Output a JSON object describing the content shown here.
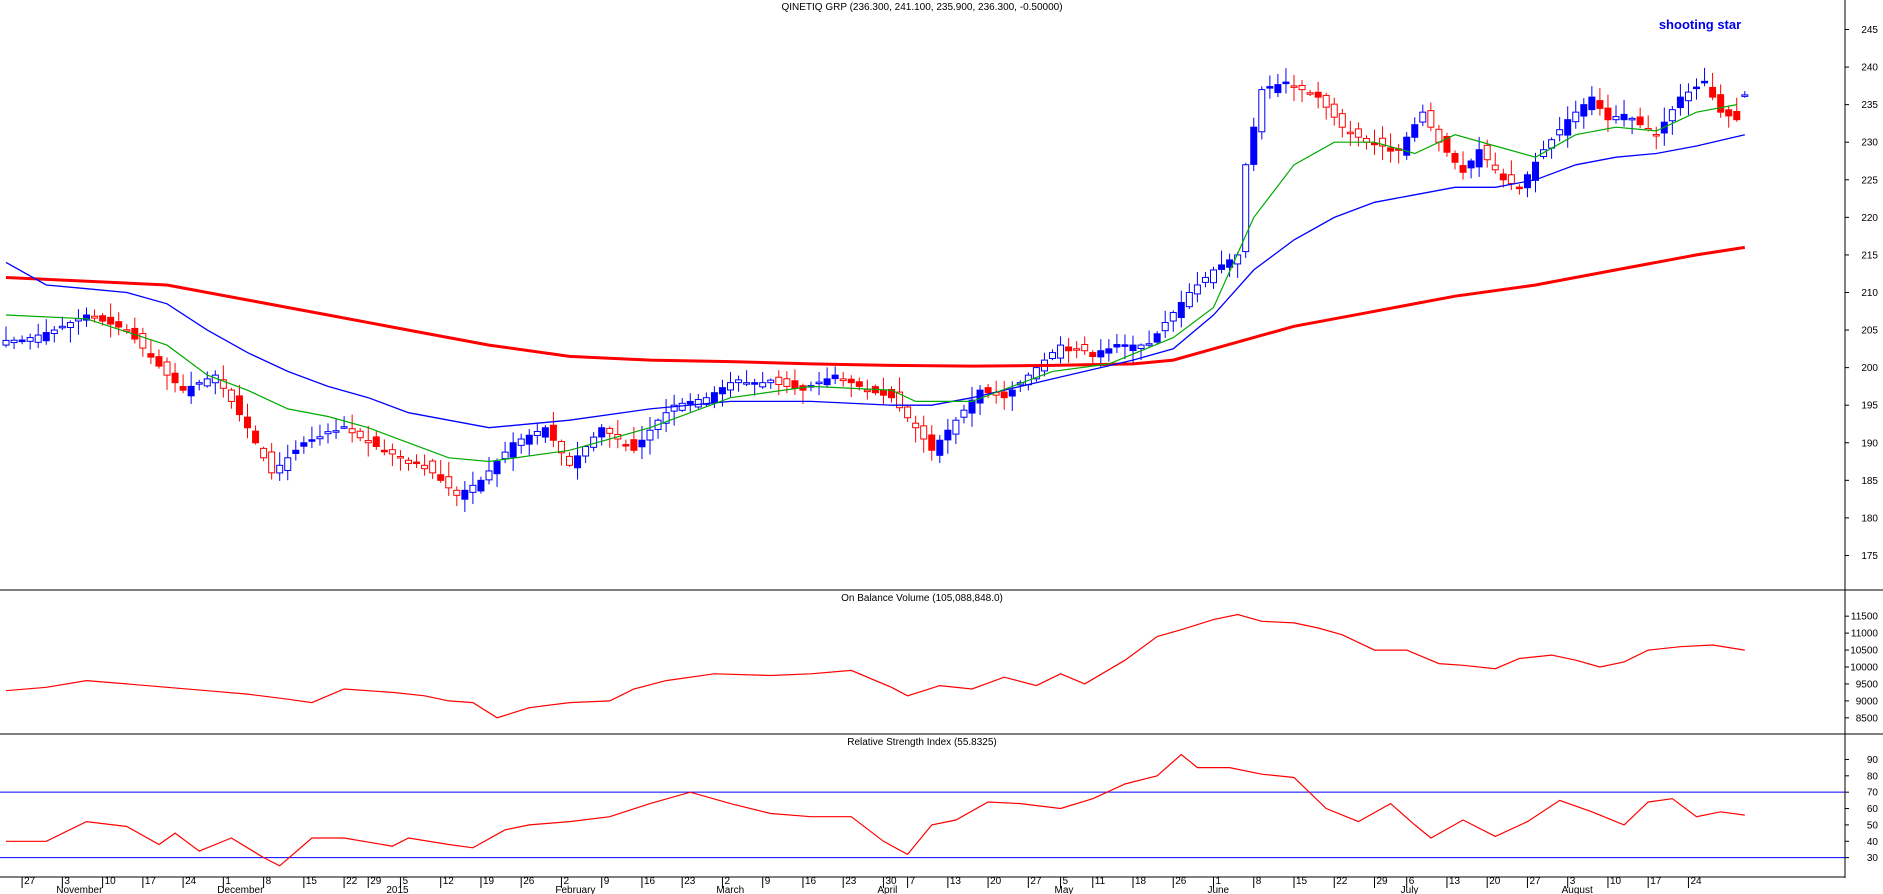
{
  "chart_data": {
    "type": "candlestick",
    "main": {
      "title": "QINETIQ GRP (236.300, 241.100, 235.900, 236.300, -0.50000)",
      "annotation": "shooting star",
      "ylim": [
        172,
        246
      ],
      "yticks": [
        "175",
        "180",
        "185",
        "190",
        "195",
        "200",
        "205",
        "210",
        "215",
        "220",
        "225",
        "230",
        "235",
        "240",
        "245"
      ],
      "grid": false,
      "colors": {
        "up": "#0000ff",
        "down": "#ff0000",
        "ma_short": "#00aa00",
        "ma_mid": "#0000ff",
        "ma_long": "#ff0000"
      },
      "close_path": [
        [
          0,
          203
        ],
        [
          6,
          205
        ],
        [
          10,
          207
        ],
        [
          15,
          205
        ],
        [
          20,
          199
        ],
        [
          22,
          197
        ],
        [
          26,
          199
        ],
        [
          30,
          192
        ],
        [
          33,
          186
        ],
        [
          37,
          190
        ],
        [
          42,
          192
        ],
        [
          45,
          190
        ],
        [
          49,
          188
        ],
        [
          52,
          187
        ],
        [
          56,
          183
        ],
        [
          59,
          185
        ],
        [
          63,
          190
        ],
        [
          67,
          192
        ],
        [
          70,
          187
        ],
        [
          74,
          192
        ],
        [
          78,
          189
        ],
        [
          81,
          193
        ],
        [
          83,
          195
        ],
        [
          87,
          196
        ],
        [
          90,
          198
        ],
        [
          95,
          198
        ],
        [
          99,
          197
        ],
        [
          103,
          199
        ],
        [
          107,
          197
        ],
        [
          110,
          196
        ],
        [
          113,
          192
        ],
        [
          115,
          189
        ],
        [
          118,
          193
        ],
        [
          121,
          197
        ],
        [
          124,
          196
        ],
        [
          127,
          199
        ],
        [
          131,
          203
        ],
        [
          135,
          202
        ],
        [
          139,
          203
        ],
        [
          142,
          203
        ],
        [
          144,
          206
        ],
        [
          147,
          210
        ],
        [
          150,
          213
        ],
        [
          153,
          215
        ],
        [
          154,
          227
        ],
        [
          156,
          237
        ],
        [
          159,
          238
        ],
        [
          163,
          236
        ],
        [
          166,
          232
        ],
        [
          169,
          230
        ],
        [
          173,
          229
        ],
        [
          176,
          234
        ],
        [
          178,
          230
        ],
        [
          181,
          226
        ],
        [
          183,
          229
        ],
        [
          186,
          225
        ],
        [
          188,
          224
        ],
        [
          191,
          229
        ],
        [
          194,
          233
        ],
        [
          197,
          236
        ],
        [
          199,
          233
        ],
        [
          202,
          233
        ],
        [
          205,
          231
        ],
        [
          208,
          236
        ],
        [
          211,
          238
        ],
        [
          213,
          234
        ],
        [
          215,
          233
        ],
        [
          216,
          236.3
        ]
      ],
      "ma_short": [
        [
          0,
          207
        ],
        [
          10,
          206.5
        ],
        [
          20,
          203
        ],
        [
          25,
          199
        ],
        [
          30,
          197
        ],
        [
          35,
          194.5
        ],
        [
          40,
          193.5
        ],
        [
          45,
          192
        ],
        [
          50,
          190
        ],
        [
          55,
          188
        ],
        [
          60,
          187.5
        ],
        [
          70,
          189
        ],
        [
          80,
          192
        ],
        [
          90,
          196
        ],
        [
          100,
          197.5
        ],
        [
          110,
          197
        ],
        [
          113,
          195.5
        ],
        [
          120,
          195.5
        ],
        [
          130,
          199.5
        ],
        [
          137,
          200.5
        ],
        [
          145,
          204
        ],
        [
          150,
          208
        ],
        [
          155,
          220
        ],
        [
          160,
          227
        ],
        [
          165,
          230
        ],
        [
          170,
          230
        ],
        [
          175,
          228.5
        ],
        [
          180,
          231
        ],
        [
          185,
          229.5
        ],
        [
          190,
          228
        ],
        [
          195,
          231
        ],
        [
          200,
          232
        ],
        [
          205,
          231.5
        ],
        [
          210,
          234
        ],
        [
          215,
          235
        ]
      ],
      "ma_mid": [
        [
          0,
          214
        ],
        [
          5,
          211
        ],
        [
          10,
          210.5
        ],
        [
          15,
          210
        ],
        [
          20,
          208.5
        ],
        [
          25,
          205
        ],
        [
          30,
          202
        ],
        [
          35,
          199.5
        ],
        [
          40,
          197.5
        ],
        [
          45,
          196
        ],
        [
          50,
          194
        ],
        [
          60,
          192
        ],
        [
          70,
          193
        ],
        [
          80,
          194.5
        ],
        [
          90,
          195.5
        ],
        [
          100,
          195.5
        ],
        [
          110,
          195
        ],
        [
          115,
          195
        ],
        [
          120,
          196
        ],
        [
          130,
          198.5
        ],
        [
          140,
          201
        ],
        [
          145,
          202.5
        ],
        [
          150,
          207
        ],
        [
          155,
          213
        ],
        [
          160,
          217
        ],
        [
          165,
          220
        ],
        [
          170,
          222
        ],
        [
          175,
          223
        ],
        [
          180,
          224
        ],
        [
          185,
          224
        ],
        [
          190,
          225
        ],
        [
          195,
          227
        ],
        [
          200,
          228
        ],
        [
          205,
          228.5
        ],
        [
          210,
          229.5
        ],
        [
          216,
          231
        ]
      ],
      "ma_long": [
        [
          0,
          212
        ],
        [
          20,
          211
        ],
        [
          30,
          209
        ],
        [
          40,
          207
        ],
        [
          50,
          205
        ],
        [
          60,
          203
        ],
        [
          70,
          201.5
        ],
        [
          80,
          201
        ],
        [
          90,
          200.8
        ],
        [
          100,
          200.5
        ],
        [
          110,
          200.3
        ],
        [
          120,
          200.2
        ],
        [
          130,
          200.3
        ],
        [
          140,
          200.5
        ],
        [
          145,
          201
        ],
        [
          150,
          202.5
        ],
        [
          160,
          205.5
        ],
        [
          170,
          207.5
        ],
        [
          180,
          209.5
        ],
        [
          190,
          211
        ],
        [
          200,
          213
        ],
        [
          210,
          215
        ],
        [
          216,
          216
        ]
      ]
    },
    "obv": {
      "title": "On Balance Volume (105,088,848.0)",
      "ylim": [
        8200,
        11800
      ],
      "yticks": [
        "8500",
        "9000",
        "9500",
        "10000",
        "10500",
        "11000",
        "11500"
      ],
      "path": [
        [
          0,
          9300
        ],
        [
          5,
          9400
        ],
        [
          10,
          9600
        ],
        [
          15,
          9500
        ],
        [
          20,
          9400
        ],
        [
          25,
          9300
        ],
        [
          30,
          9200
        ],
        [
          35,
          9050
        ],
        [
          38,
          8950
        ],
        [
          42,
          9350
        ],
        [
          48,
          9250
        ],
        [
          52,
          9150
        ],
        [
          55,
          9000
        ],
        [
          58,
          8950
        ],
        [
          61,
          8500
        ],
        [
          65,
          8800
        ],
        [
          70,
          8950
        ],
        [
          75,
          9000
        ],
        [
          78,
          9350
        ],
        [
          82,
          9600
        ],
        [
          88,
          9800
        ],
        [
          95,
          9750
        ],
        [
          100,
          9800
        ],
        [
          105,
          9900
        ],
        [
          110,
          9400
        ],
        [
          112,
          9150
        ],
        [
          116,
          9450
        ],
        [
          120,
          9350
        ],
        [
          124,
          9700
        ],
        [
          128,
          9450
        ],
        [
          131,
          9800
        ],
        [
          134,
          9500
        ],
        [
          139,
          10200
        ],
        [
          143,
          10900
        ],
        [
          146,
          11100
        ],
        [
          150,
          11400
        ],
        [
          153,
          11550
        ],
        [
          156,
          11350
        ],
        [
          160,
          11300
        ],
        [
          163,
          11150
        ],
        [
          166,
          10950
        ],
        [
          170,
          10500
        ],
        [
          174,
          10500
        ],
        [
          178,
          10100
        ],
        [
          181,
          10050
        ],
        [
          185,
          9950
        ],
        [
          188,
          10250
        ],
        [
          192,
          10350
        ],
        [
          195,
          10200
        ],
        [
          198,
          10000
        ],
        [
          201,
          10150
        ],
        [
          204,
          10500
        ],
        [
          208,
          10600
        ],
        [
          212,
          10650
        ],
        [
          216,
          10500
        ]
      ]
    },
    "rsi": {
      "title": "Relative Strength Index (55.8325)",
      "ylim": [
        20,
        97
      ],
      "yticks": [
        "30",
        "40",
        "50",
        "60",
        "70",
        "80",
        "90"
      ],
      "levels": [
        30,
        70
      ],
      "path": [
        [
          0,
          40
        ],
        [
          5,
          40
        ],
        [
          10,
          52
        ],
        [
          15,
          49
        ],
        [
          19,
          38
        ],
        [
          21,
          45
        ],
        [
          24,
          34
        ],
        [
          28,
          42
        ],
        [
          32,
          30
        ],
        [
          34,
          25
        ],
        [
          38,
          42
        ],
        [
          42,
          42
        ],
        [
          48,
          37
        ],
        [
          50,
          42
        ],
        [
          55,
          38
        ],
        [
          58,
          36
        ],
        [
          62,
          47
        ],
        [
          65,
          50
        ],
        [
          70,
          52
        ],
        [
          75,
          55
        ],
        [
          80,
          63
        ],
        [
          85,
          70
        ],
        [
          90,
          63
        ],
        [
          95,
          57
        ],
        [
          100,
          55
        ],
        [
          105,
          55
        ],
        [
          109,
          40
        ],
        [
          112,
          32
        ],
        [
          115,
          50
        ],
        [
          118,
          53
        ],
        [
          122,
          64
        ],
        [
          126,
          63
        ],
        [
          131,
          60
        ],
        [
          135,
          66
        ],
        [
          139,
          75
        ],
        [
          143,
          80
        ],
        [
          146,
          93
        ],
        [
          148,
          85
        ],
        [
          152,
          85
        ],
        [
          156,
          81
        ],
        [
          160,
          79
        ],
        [
          164,
          60
        ],
        [
          168,
          52
        ],
        [
          172,
          63
        ],
        [
          175,
          50
        ],
        [
          177,
          42
        ],
        [
          181,
          53
        ],
        [
          185,
          43
        ],
        [
          189,
          52
        ],
        [
          193,
          65
        ],
        [
          197,
          58
        ],
        [
          201,
          50
        ],
        [
          204,
          64
        ],
        [
          207,
          66
        ],
        [
          210,
          55
        ],
        [
          213,
          58
        ],
        [
          216,
          56
        ]
      ]
    },
    "xaxis": {
      "day_ticks": [
        {
          "i": 2,
          "label": "27"
        },
        {
          "i": 7,
          "label": "3"
        },
        {
          "i": 12,
          "label": "10"
        },
        {
          "i": 17,
          "label": "17"
        },
        {
          "i": 22,
          "label": "24"
        },
        {
          "i": 27,
          "label": "1"
        },
        {
          "i": 32,
          "label": "8"
        },
        {
          "i": 37,
          "label": "15"
        },
        {
          "i": 42,
          "label": "22"
        },
        {
          "i": 45,
          "label": "29"
        },
        {
          "i": 49,
          "label": "5"
        },
        {
          "i": 54,
          "label": "12"
        },
        {
          "i": 59,
          "label": "19"
        },
        {
          "i": 64,
          "label": "26"
        },
        {
          "i": 69,
          "label": "2"
        },
        {
          "i": 74,
          "label": "9"
        },
        {
          "i": 79,
          "label": "16"
        },
        {
          "i": 84,
          "label": "23"
        },
        {
          "i": 89,
          "label": "2"
        },
        {
          "i": 94,
          "label": "9"
        },
        {
          "i": 99,
          "label": "16"
        },
        {
          "i": 104,
          "label": "23"
        },
        {
          "i": 109,
          "label": "30"
        },
        {
          "i": 112,
          "label": "7"
        },
        {
          "i": 117,
          "label": "13"
        },
        {
          "i": 122,
          "label": "20"
        },
        {
          "i": 127,
          "label": "27"
        },
        {
          "i": 131,
          "label": "5"
        },
        {
          "i": 135,
          "label": "11"
        },
        {
          "i": 140,
          "label": "18"
        },
        {
          "i": 145,
          "label": "26"
        },
        {
          "i": 150,
          "label": "1"
        },
        {
          "i": 155,
          "label": "8"
        },
        {
          "i": 160,
          "label": "15"
        },
        {
          "i": 165,
          "label": "22"
        },
        {
          "i": 170,
          "label": "29"
        },
        {
          "i": 174,
          "label": "6"
        },
        {
          "i": 179,
          "label": "13"
        },
        {
          "i": 184,
          "label": "20"
        },
        {
          "i": 189,
          "label": "27"
        },
        {
          "i": 194,
          "label": "3"
        },
        {
          "i": 199,
          "label": "10"
        },
        {
          "i": 204,
          "label": "17"
        },
        {
          "i": 209,
          "label": "24"
        }
      ],
      "month_ticks": [
        {
          "i": 6,
          "label": "November"
        },
        {
          "i": 26,
          "label": "December"
        },
        {
          "i": 47,
          "label": "2015"
        },
        {
          "i": 68,
          "label": "February"
        },
        {
          "i": 88,
          "label": "March"
        },
        {
          "i": 108,
          "label": "April"
        },
        {
          "i": 130,
          "label": "May"
        },
        {
          "i": 149,
          "label": "June"
        },
        {
          "i": 173,
          "label": "July"
        },
        {
          "i": 193,
          "label": "August"
        }
      ]
    }
  }
}
